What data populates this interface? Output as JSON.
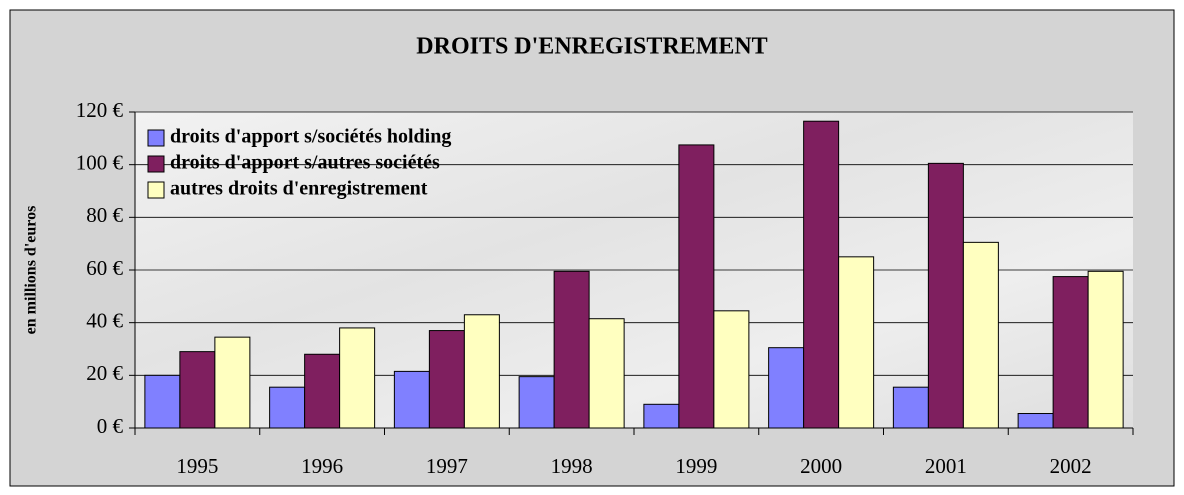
{
  "chart_data": {
    "type": "bar",
    "title": "DROITS D'ENREGISTREMENT",
    "y_label": "en millions d'euros",
    "categories": [
      "1995",
      "1996",
      "1997",
      "1998",
      "1999",
      "2000",
      "2001",
      "2002"
    ],
    "series": [
      {
        "name": "droits d'apport s/sociétés holding",
        "color": "#8080ff",
        "values": [
          20,
          15.5,
          21.5,
          19.5,
          9,
          30.5,
          15.5,
          5.5
        ]
      },
      {
        "name": "droits d'apport s/autres sociétés",
        "color": "#7f1f5f",
        "values": [
          29,
          28,
          37,
          59.5,
          107.5,
          116.5,
          100.5,
          57.5
        ]
      },
      {
        "name": "autres droits d'enregistrement",
        "color": "#ffffc0",
        "values": [
          34.5,
          38,
          43,
          41.5,
          44.5,
          65,
          70.5,
          59.5
        ]
      }
    ],
    "ylim": [
      0,
      120
    ],
    "yticks": [
      {
        "value": 0,
        "label": "0 €"
      },
      {
        "value": 20,
        "label": "20 €"
      },
      {
        "value": 40,
        "label": "40 €"
      },
      {
        "value": 60,
        "label": "60 €"
      },
      {
        "value": 80,
        "label": "80 €"
      },
      {
        "value": 100,
        "label": "100 €"
      },
      {
        "value": 120,
        "label": "120 €"
      }
    ],
    "grid": true,
    "legend": "top-left"
  }
}
